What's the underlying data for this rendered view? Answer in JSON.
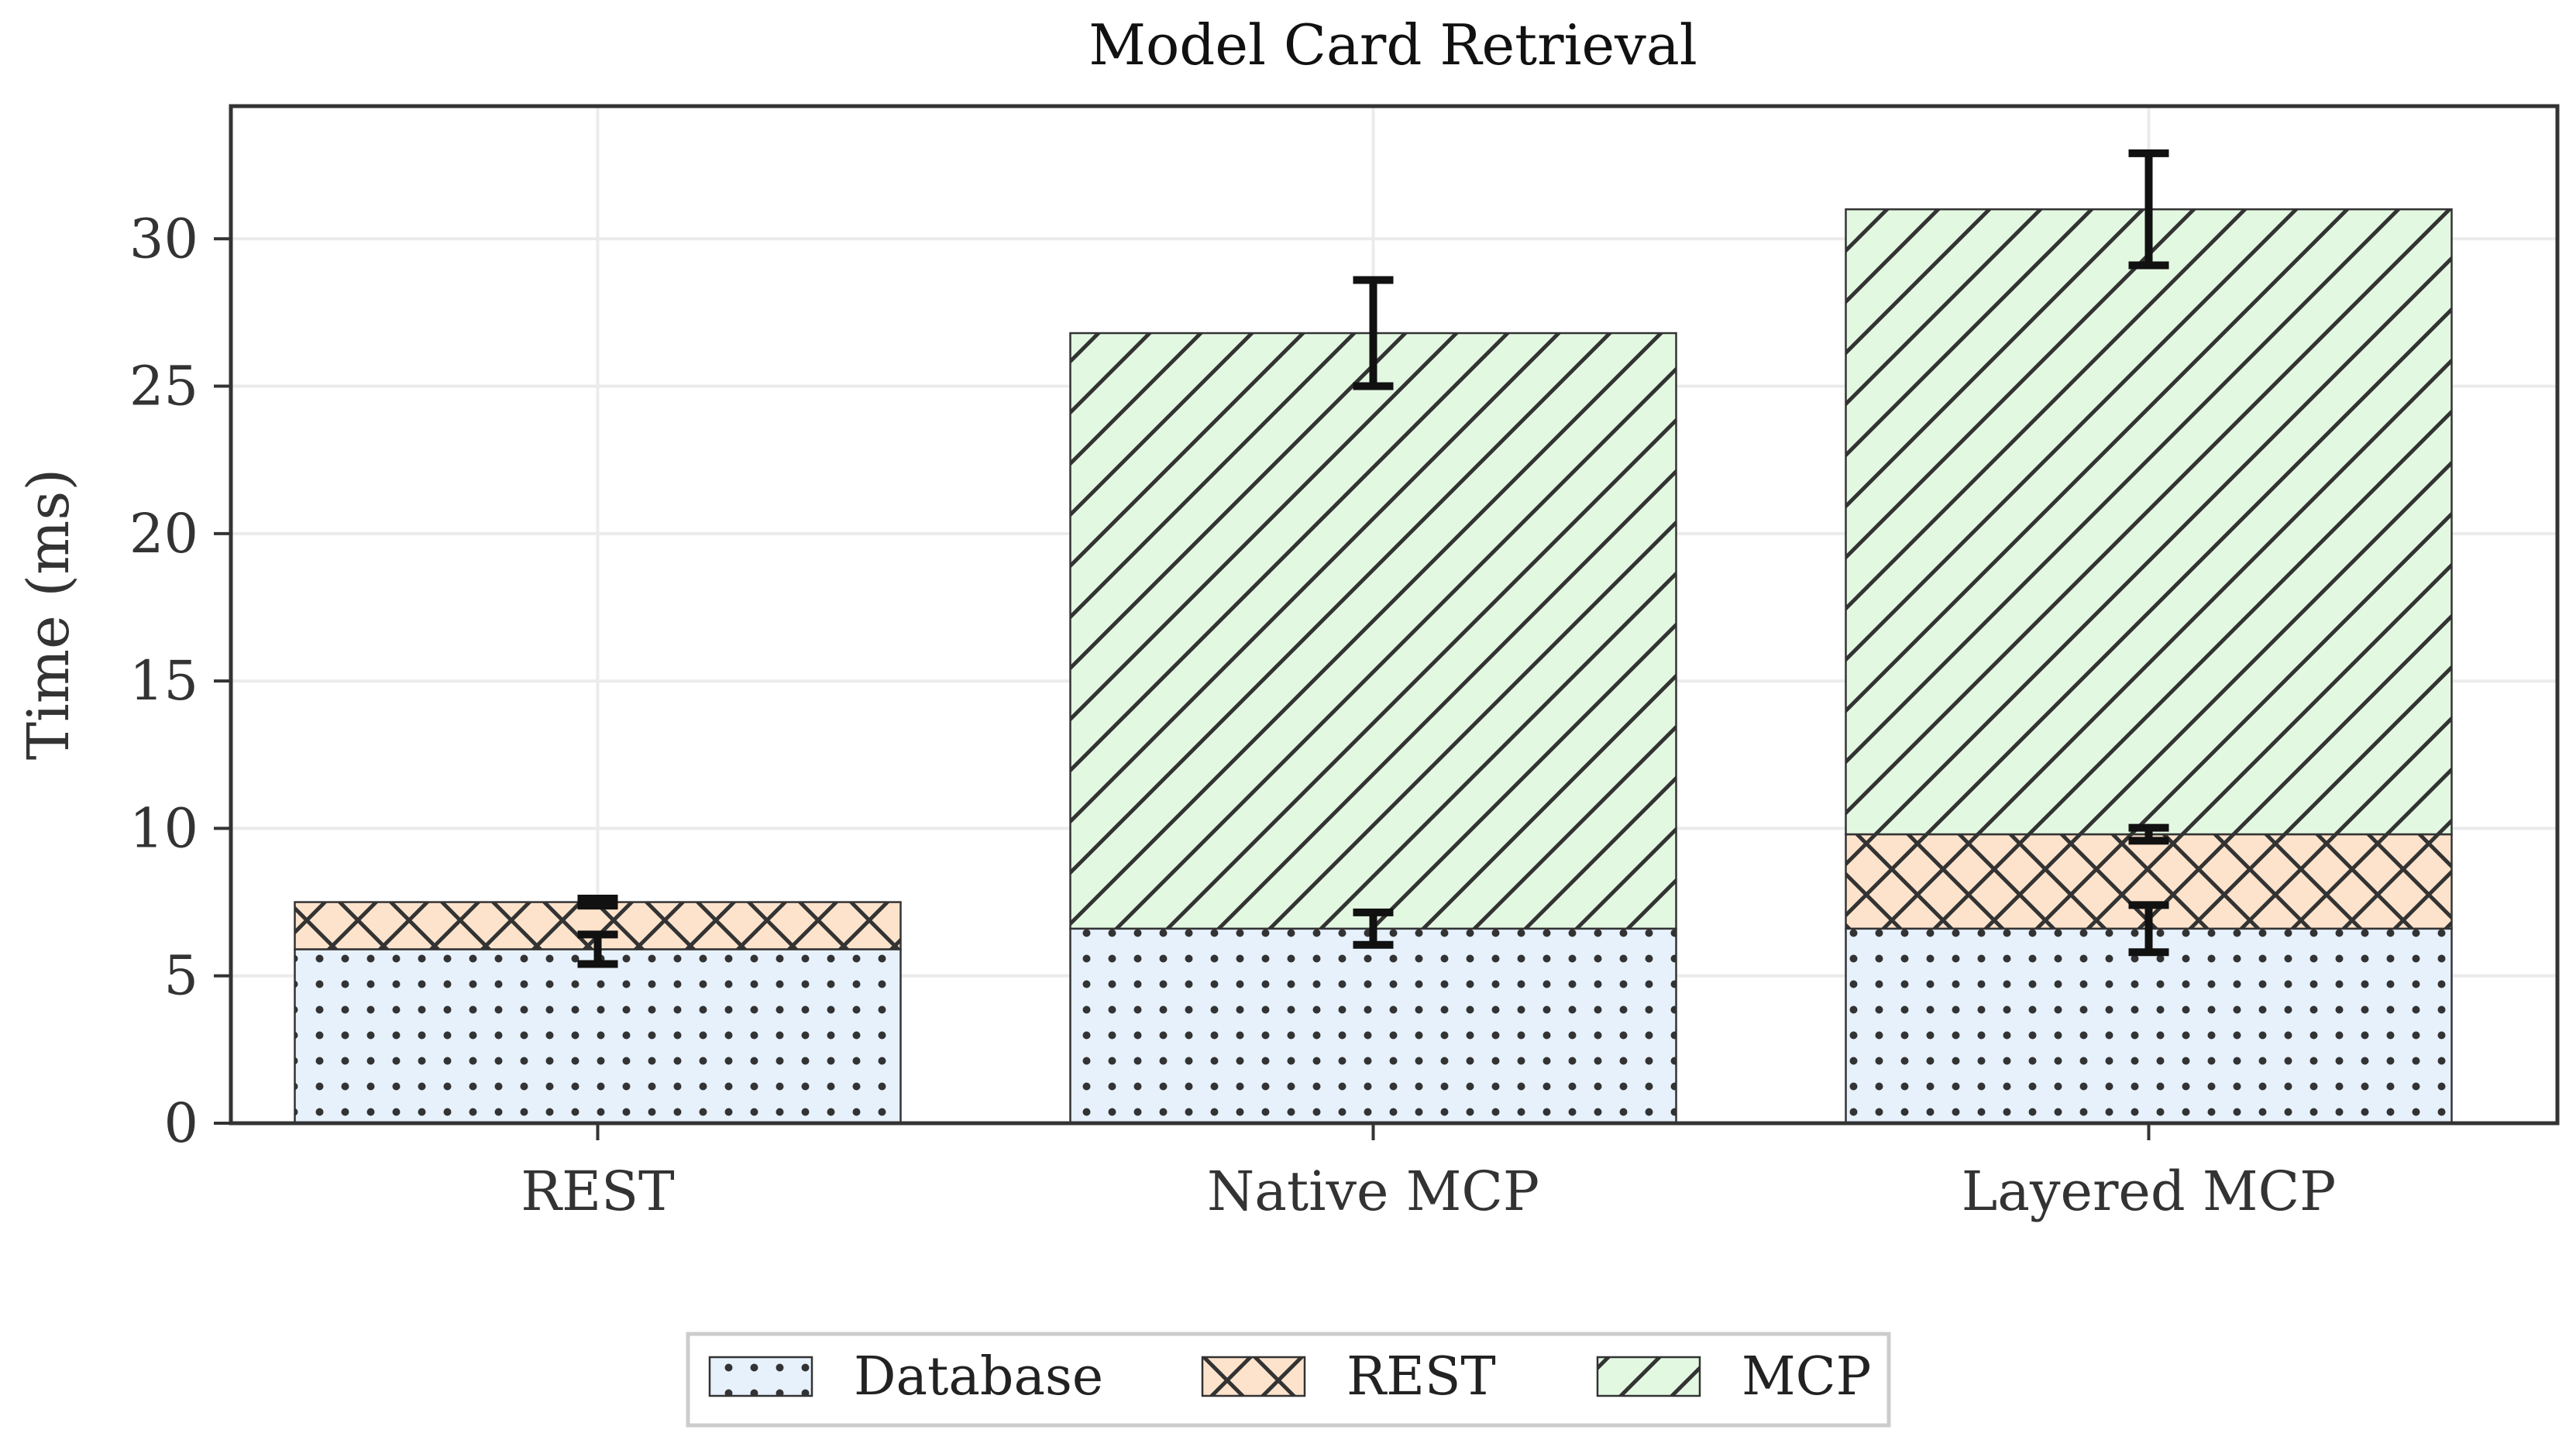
{
  "chart_data": {
    "type": "bar",
    "stacked": true,
    "title": "Model Card Retrieval",
    "xlabel": "",
    "ylabel": "Time (ms)",
    "ylim": [
      0,
      34.5
    ],
    "yticks": [
      0,
      5,
      10,
      15,
      20,
      25,
      30
    ],
    "grid": true,
    "categories": [
      "REST",
      "Native MCP",
      "Layered MCP"
    ],
    "series": [
      {
        "name": "Database",
        "color": "#e6f1fc",
        "hatch": "dots",
        "values": [
          5.9,
          6.6,
          6.6
        ],
        "errors": [
          0.5,
          0.55,
          0.8
        ]
      },
      {
        "name": "REST",
        "color": "#fde3cc",
        "hatch": "crosshatch",
        "values": [
          1.6,
          0,
          3.2
        ],
        "errors": [
          0.12,
          null,
          0.22
        ]
      },
      {
        "name": "MCP",
        "color": "#e3f8e1",
        "hatch": "diagonal",
        "values": [
          0,
          20.2,
          21.2
        ],
        "errors": [
          null,
          1.8,
          1.9
        ]
      }
    ],
    "legend": {
      "position": "bottom-center"
    }
  }
}
